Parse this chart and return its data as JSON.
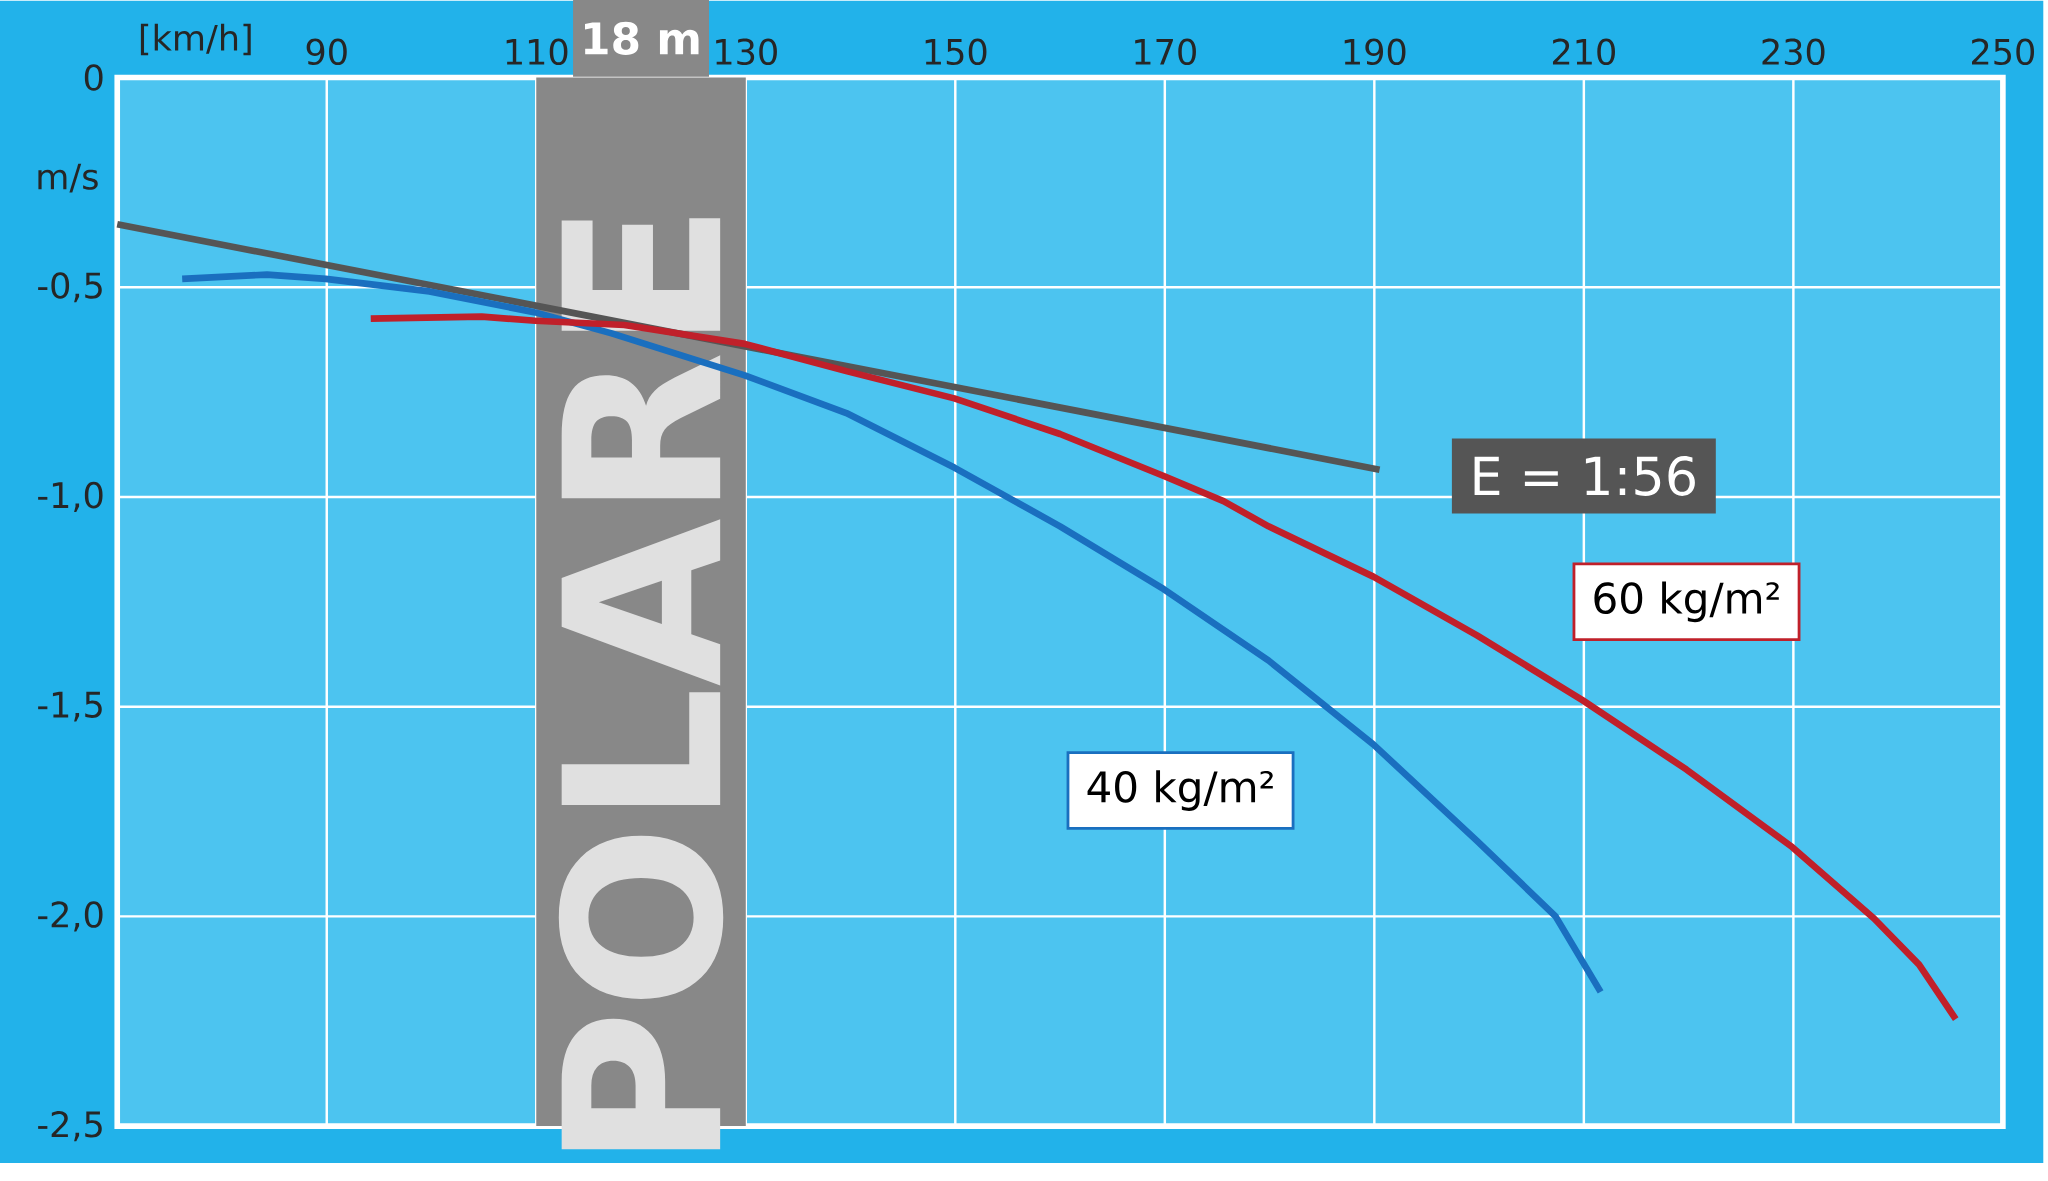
{
  "chart_data": {
    "type": "line",
    "xlabel": "[km/h]",
    "ylabel": "m/s",
    "annotations": [
      "POLARE"
    ],
    "xlim": [
      70,
      250
    ],
    "ylim": [
      -2.5,
      0
    ],
    "xticks": [
      90,
      110,
      130,
      150,
      170,
      190,
      210,
      230,
      250
    ],
    "yticks": [
      0,
      {
        "value": -0.5,
        "label": "-0,5"
      },
      {
        "value": -1,
        "label": "-1,0"
      },
      {
        "value": -1.5,
        "label": "-1,5"
      },
      {
        "value": -2,
        "label": "-2,0"
      },
      {
        "value": -2.5,
        "label": "-2,5"
      }
    ],
    "grid": true,
    "bands": [
      {
        "axis": "x",
        "from": 110,
        "to": 130,
        "label": "18 m",
        "color": "#888888"
      }
    ],
    "series": [
      {
        "name": "E = 1:56",
        "color": "#555555",
        "x": [
          70,
          190.5
        ],
        "values": [
          -0.35,
          -0.935
        ]
      },
      {
        "name": "40 kg/m²",
        "color": "#1a6fbf",
        "x": [
          76.2,
          84.3,
          89.9,
          99.8,
          109.9,
          117.2,
          129.9,
          139.6,
          149.9,
          160,
          169.9,
          179.9,
          189.9,
          199.8,
          207.3,
          211.6
        ],
        "values": [
          -0.48,
          -0.47,
          -0.48,
          -0.51,
          -0.56,
          -0.61,
          -0.71,
          -0.8,
          -0.93,
          -1.07,
          -1.22,
          -1.39,
          -1.59,
          -1.82,
          -2.0,
          -2.18
        ]
      },
      {
        "name": "60 kg/m²",
        "color": "#c0202a",
        "x": [
          94.2,
          104.8,
          109.9,
          118.4,
          129.9,
          139.6,
          149.9,
          160,
          169.9,
          175.6,
          179.9,
          189.9,
          199.8,
          209.9,
          219.8,
          229.9,
          237.7,
          242,
          245.5
        ],
        "values": [
          -0.575,
          -0.57,
          -0.58,
          -0.59,
          -0.635,
          -0.7,
          -0.765,
          -0.85,
          -0.95,
          -1.01,
          -1.07,
          -1.19,
          -1.33,
          -1.485,
          -1.65,
          -1.835,
          -2.005,
          -2.115,
          -2.245
        ]
      }
    ]
  }
}
